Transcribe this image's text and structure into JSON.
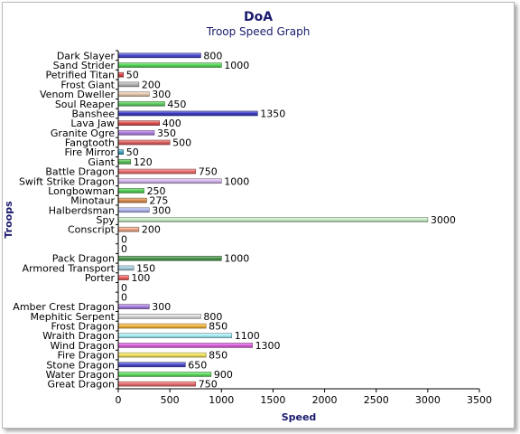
{
  "chart_data": {
    "type": "bar",
    "orientation": "horizontal",
    "title": "DoA",
    "subtitle": "Troop Speed Graph",
    "xlabel": "Speed",
    "ylabel": "Troops",
    "xlim": [
      0,
      3500
    ],
    "xticks": [
      0,
      500,
      1000,
      1500,
      2000,
      2500,
      3000,
      3500
    ],
    "grid": false,
    "categories": [
      "Dark Slayer",
      "Sand Strider",
      "Petrified Titan",
      "Frost Giant",
      "Venom Dweller",
      "Soul Reaper",
      "Banshee",
      "Lava Jaw",
      "Granite Ogre",
      "Fangtooth",
      "Fire Mirror",
      "Giant",
      "Battle Dragon",
      "Swift Strike Dragon",
      "Longbowman",
      "Minotaur",
      "Halberdsman",
      "Spy",
      "Conscript",
      "",
      "",
      "Pack Dragon",
      "Armored Transport",
      "Porter",
      "",
      "",
      "Amber Crest Dragon",
      "Mephitic Serpent",
      "Frost Dragon",
      "Wraith Dragon",
      "Wind Dragon",
      "Fire Dragon",
      "Stone Dragon",
      "Water Dragon",
      "Great Dragon"
    ],
    "values": [
      800,
      1000,
      50,
      200,
      300,
      450,
      1350,
      400,
      350,
      500,
      50,
      120,
      750,
      1000,
      250,
      275,
      300,
      3000,
      200,
      0,
      0,
      1000,
      150,
      100,
      0,
      0,
      300,
      800,
      850,
      1100,
      1300,
      850,
      650,
      900,
      750
    ],
    "value_labels": [
      "800",
      "1000",
      "50",
      "200",
      "300",
      "450",
      "1350",
      "400",
      "350",
      "500",
      "50",
      "120",
      "750",
      "1000",
      "250",
      "275",
      "300",
      "3000",
      "200",
      "0",
      "0",
      "1000",
      "150",
      "100",
      "0",
      "0",
      "300",
      "800",
      "850",
      "1100",
      "1300",
      "850",
      "650",
      "900",
      "750"
    ],
    "colors": [
      "#4c4cd0",
      "#54d854",
      "#e04848",
      "#b8b8b8",
      "#e8ccb0",
      "#60d060",
      "#3c3cc4",
      "#e05050",
      "#b080e0",
      "#e06060",
      "#40a8c8",
      "#58c058",
      "#f07070",
      "#d8b8f0",
      "#54d054",
      "#e09050",
      "#b0b8f0",
      "#c8f0c8",
      "#f0a888",
      "#cccccc",
      "#cccccc",
      "#4e9a4e",
      "#a8d0e0",
      "#f06060",
      "#cccccc",
      "#cccccc",
      "#a880e0",
      "#e0e0e0",
      "#f8b840",
      "#a8f0f8",
      "#e060e0",
      "#f8e860",
      "#4c4cd0",
      "#60e060",
      "#f07070"
    ]
  }
}
